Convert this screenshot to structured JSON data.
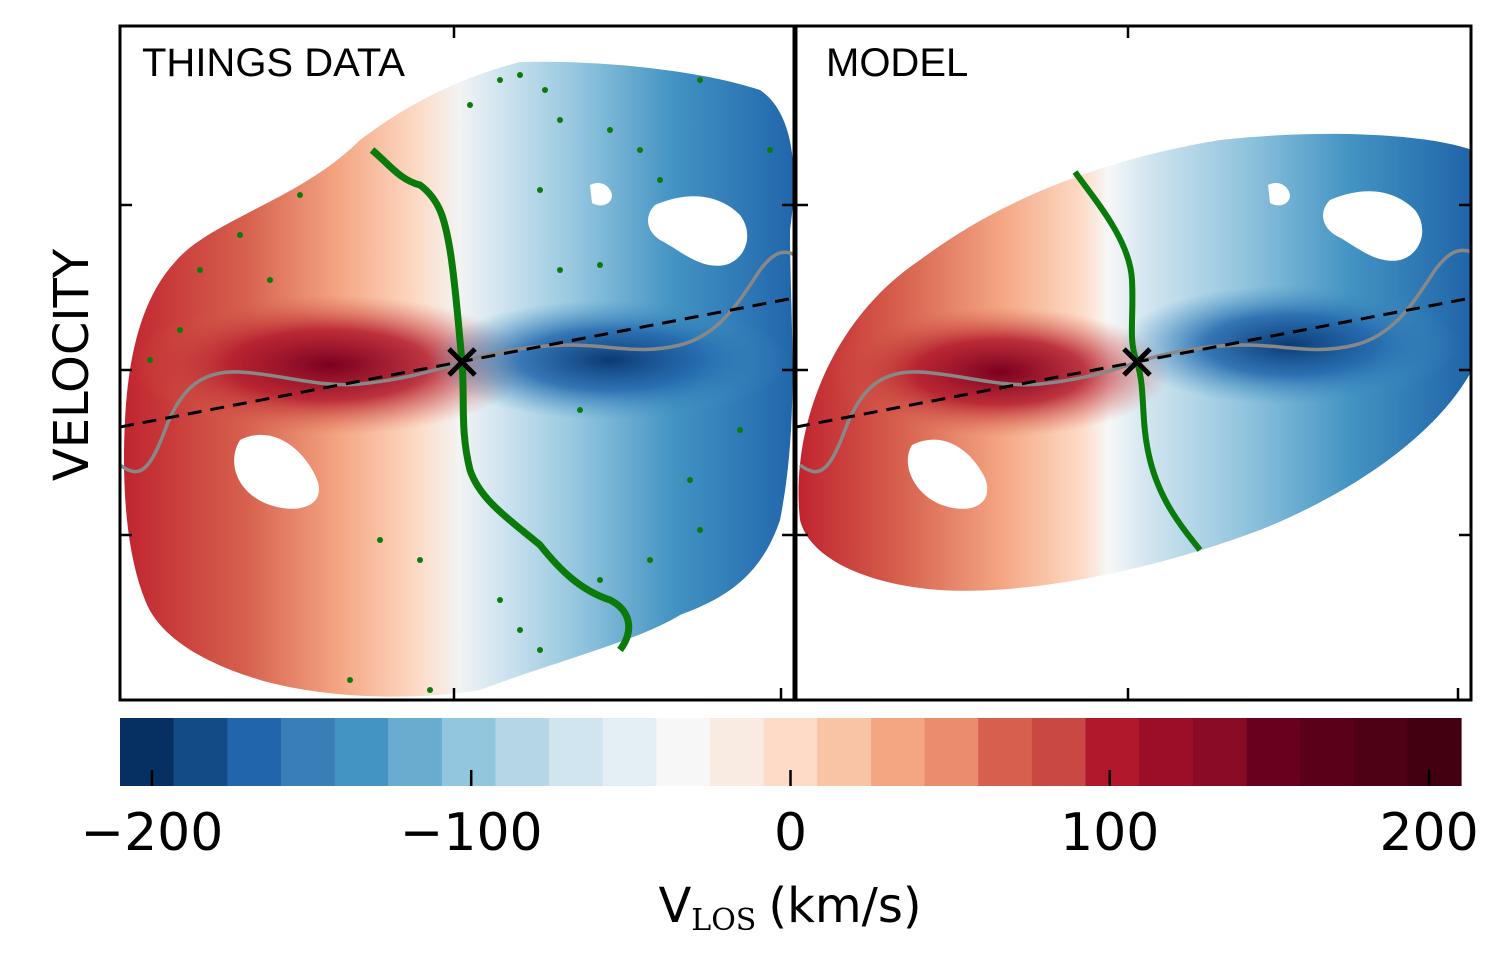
{
  "chart_data": {
    "type": "heatmap",
    "panels": [
      {
        "label": "THINGS DATA",
        "kind": "observed velocity field"
      },
      {
        "label": "MODEL",
        "kind": "model velocity field"
      }
    ],
    "ylabel": "VELOCITY",
    "colorbar": {
      "label_main": "V",
      "label_sub": "LOS",
      "label_units": "(km/s)",
      "range": [
        -210,
        210
      ],
      "ticks": [
        -200,
        -100,
        0,
        100,
        200
      ],
      "tick_labels": [
        "−200",
        "−100",
        "0",
        "100",
        "200"
      ],
      "n_bins": 25,
      "colors": [
        "#053061",
        "#134b87",
        "#2166ac",
        "#3a7eb8",
        "#4393c3",
        "#6aacd0",
        "#92c5de",
        "#b4d6e7",
        "#d1e5f0",
        "#e4eef5",
        "#f7f7f7",
        "#faebe2",
        "#fddbc7",
        "#f9c3a5",
        "#f4a582",
        "#ea8d6d",
        "#d6604d",
        "#c94843",
        "#b2182b",
        "#9c0e28",
        "#8a0b25",
        "#67001f",
        "#5a0019",
        "#4e0015",
        "#400010"
      ]
    },
    "annotations": {
      "center_marker": "×",
      "major_axis": "dashed line",
      "kinematic_minor_axis": "green curve",
      "rotation_curve_trace": "gray curve"
    }
  }
}
